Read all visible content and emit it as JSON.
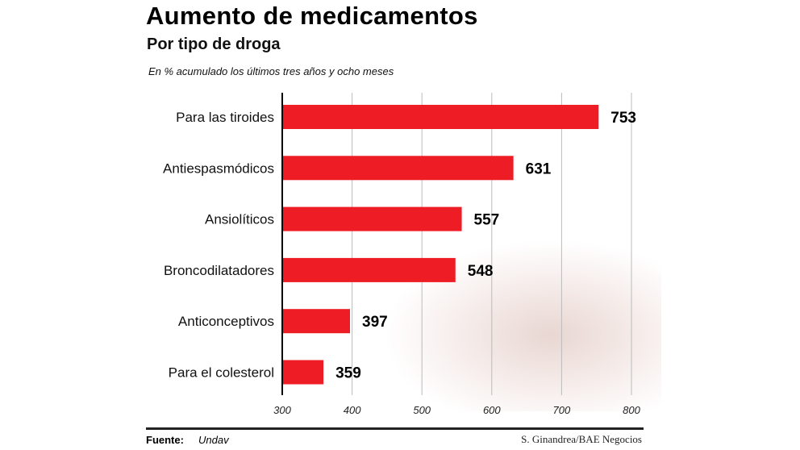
{
  "chart_data": {
    "type": "bar",
    "orientation": "horizontal",
    "title": "Aumento de medicamentos",
    "subtitle": "Por tipo de droga",
    "note": "En % acumulado los últimos tres años y ocho meses",
    "categories": [
      "Para las tiroides",
      "Antiespasmódicos",
      "Ansiolíticos",
      "Broncodilatadores",
      "Anticonceptivos",
      "Para el colesterol"
    ],
    "values": [
      753,
      631,
      557,
      548,
      397,
      359
    ],
    "xlim": [
      300,
      800
    ],
    "xticks": [
      "300",
      "400",
      "500",
      "600",
      "700",
      "800"
    ],
    "grid": true,
    "bar_color": "#ee1c25"
  },
  "footer": {
    "source_label": "Fuente:",
    "source_value": "Undav",
    "credit": "S. Ginandrea/BAE Negocios"
  }
}
